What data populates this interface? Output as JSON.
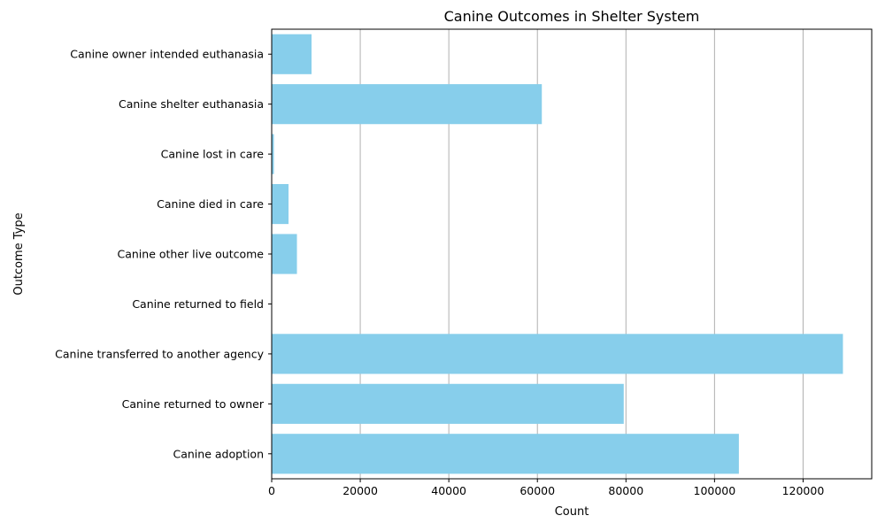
{
  "chart_data": {
    "type": "bar",
    "orientation": "horizontal",
    "title": "Canine Outcomes in Shelter System",
    "xlabel": "Count",
    "ylabel": "Outcome Type",
    "categories": [
      "Canine adoption",
      "Canine returned to owner",
      "Canine transferred to another agency",
      "Canine returned to field",
      "Canine other live outcome",
      "Canine died in care",
      "Canine lost in care",
      "Canine shelter euthanasia",
      "Canine owner intended euthanasia"
    ],
    "values": [
      105500,
      79500,
      129000,
      0,
      5700,
      3800,
      500,
      61000,
      9000
    ],
    "xlim": [
      0,
      135500
    ],
    "xticks": [
      0,
      20000,
      40000,
      60000,
      80000,
      100000,
      120000
    ],
    "grid": "vertical",
    "bar_color": "#87ceeb"
  }
}
